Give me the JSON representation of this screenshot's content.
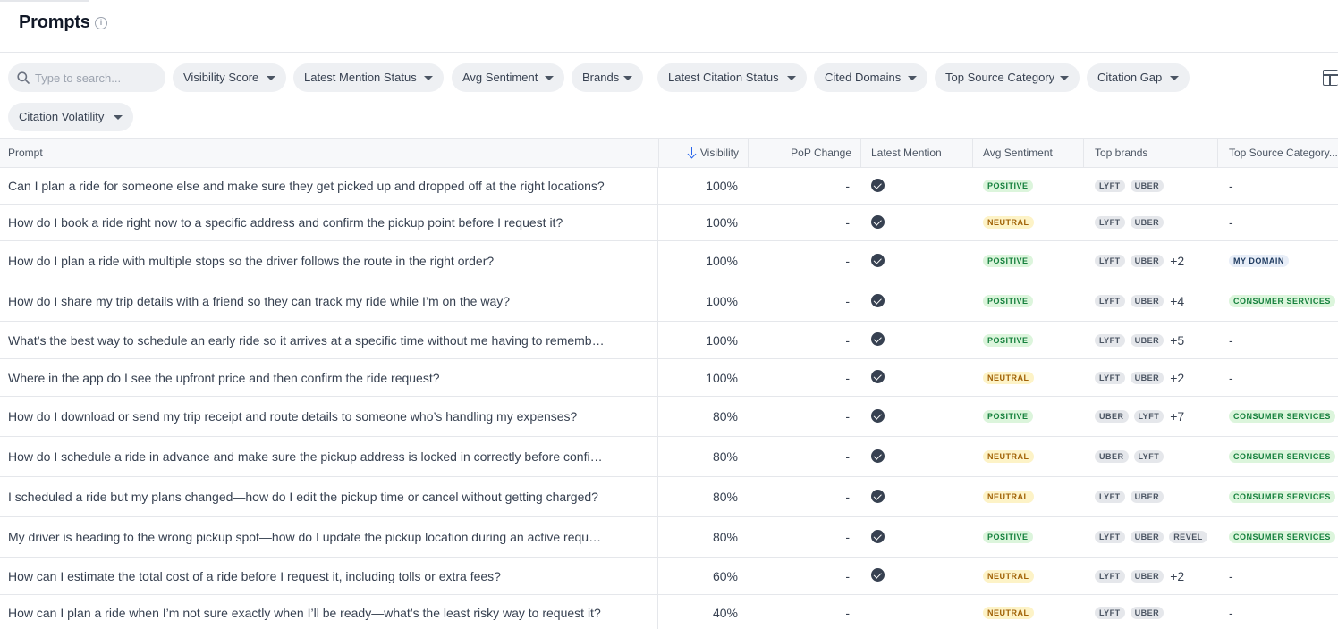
{
  "page": {
    "title": "Prompts"
  },
  "search": {
    "placeholder": "Type to search..."
  },
  "filters": [
    "Visibility Score",
    "Latest Mention Status",
    "Avg Sentiment",
    "Brands",
    "Latest Citation Status",
    "Cited Domains",
    "Top Source Category",
    "Citation Gap",
    "Citation Volatility"
  ],
  "columns": {
    "prompt": "Prompt",
    "visibility": "Visibility",
    "pop_change": "PoP Change",
    "latest_mention": "Latest Mention",
    "avg_sentiment": "Avg Sentiment",
    "top_brands": "Top brands",
    "top_source": "Top Source Category..."
  },
  "sort": {
    "column": "visibility",
    "direction": "desc"
  },
  "rows": [
    {
      "prompt": "Can I plan a ride for someone else and make sure they get picked up and dropped off at the right locations?",
      "visibility": "100%",
      "pop": "-",
      "mention": true,
      "sentiment": "POSITIVE",
      "brands": [
        "LYFT",
        "UBER"
      ],
      "more": "",
      "source": "-"
    },
    {
      "prompt": "How do I book a ride right now to a specific address and confirm the pickup point before I request it?",
      "visibility": "100%",
      "pop": "-",
      "mention": true,
      "sentiment": "NEUTRAL",
      "brands": [
        "LYFT",
        "UBER"
      ],
      "more": "",
      "source": "-"
    },
    {
      "prompt": "How do I plan a ride with multiple stops so the driver follows the route in the right order?",
      "visibility": "100%",
      "pop": "-",
      "mention": true,
      "sentiment": "POSITIVE",
      "brands": [
        "LYFT",
        "UBER"
      ],
      "more": "+2",
      "source": "MY DOMAIN"
    },
    {
      "prompt": "How do I share my trip details with a friend so they can track my ride while I’m on the way?",
      "visibility": "100%",
      "pop": "-",
      "mention": true,
      "sentiment": "POSITIVE",
      "brands": [
        "LYFT",
        "UBER"
      ],
      "more": "+4",
      "source": "CONSUMER SERVICES"
    },
    {
      "prompt": "What’s the best way to schedule an early ride so it arrives at a specific time without me having to rememb…",
      "visibility": "100%",
      "pop": "-",
      "mention": true,
      "sentiment": "POSITIVE",
      "brands": [
        "LYFT",
        "UBER"
      ],
      "more": "+5",
      "source": "-"
    },
    {
      "prompt": "Where in the app do I see the upfront price and then confirm the ride request?",
      "visibility": "100%",
      "pop": "-",
      "mention": true,
      "sentiment": "NEUTRAL",
      "brands": [
        "LYFT",
        "UBER"
      ],
      "more": "+2",
      "source": "-"
    },
    {
      "prompt": "How do I download or send my trip receipt and route details to someone who’s handling my expenses?",
      "visibility": "80%",
      "pop": "-",
      "mention": true,
      "sentiment": "POSITIVE",
      "brands": [
        "UBER",
        "LYFT"
      ],
      "more": "+7",
      "source": "CONSUMER SERVICES"
    },
    {
      "prompt": "How do I schedule a ride in advance and make sure the pickup address is locked in correctly before confir…",
      "visibility": "80%",
      "pop": "-",
      "mention": true,
      "sentiment": "NEUTRAL",
      "brands": [
        "UBER",
        "LYFT"
      ],
      "more": "",
      "source": "CONSUMER SERVICES"
    },
    {
      "prompt": "I scheduled a ride but my plans changed—how do I edit the pickup time or cancel without getting charged?",
      "visibility": "80%",
      "pop": "-",
      "mention": true,
      "sentiment": "NEUTRAL",
      "brands": [
        "LYFT",
        "UBER"
      ],
      "more": "",
      "source": "CONSUMER SERVICES"
    },
    {
      "prompt": "My driver is heading to the wrong pickup spot—how do I update the pickup location during an active reque…",
      "visibility": "80%",
      "pop": "-",
      "mention": true,
      "sentiment": "POSITIVE",
      "brands": [
        "LYFT",
        "UBER",
        "REVEL"
      ],
      "more": "",
      "source": "CONSUMER SERVICES"
    },
    {
      "prompt": "How can I estimate the total cost of a ride before I request it, including tolls or extra fees?",
      "visibility": "60%",
      "pop": "-",
      "mention": true,
      "sentiment": "NEUTRAL",
      "brands": [
        "LYFT",
        "UBER"
      ],
      "more": "+2",
      "source": "-"
    },
    {
      "prompt": "How can I plan a ride when I’m not sure exactly when I’ll be ready—what’s the least risky way to request it?",
      "visibility": "40%",
      "pop": "-",
      "mention": false,
      "sentiment": "NEUTRAL",
      "brands": [
        "LYFT",
        "UBER"
      ],
      "more": "",
      "source": "-"
    }
  ],
  "colors": {
    "positive_bg": "#dcf5dc",
    "positive_fg": "#15803d",
    "neutral_bg": "#fdf3c7",
    "neutral_fg": "#a16207",
    "accent": "#2563eb"
  },
  "icons": {
    "info": "info-icon",
    "search": "search-icon",
    "sort": "arrow-down-icon",
    "check": "check-circle-icon",
    "columns": "columns-icon"
  }
}
